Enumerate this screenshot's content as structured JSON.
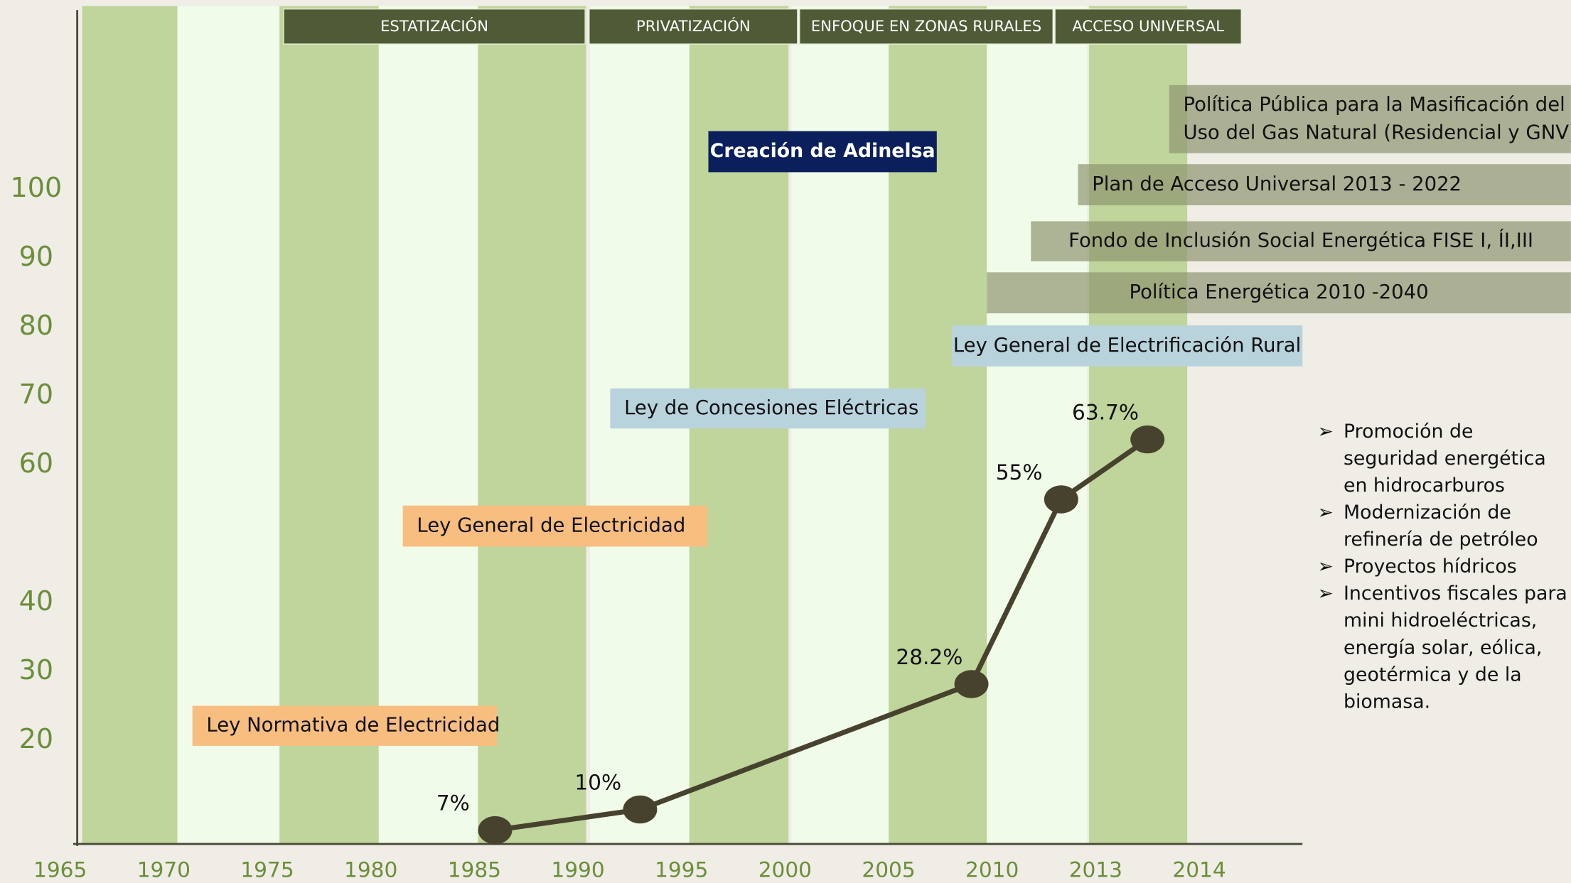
{
  "chart_data": {
    "type": "line",
    "phases": [
      "ESTATIZACIÓN",
      "PRIVATIZACIÓN",
      "ENFOQUE EN ZONAS RURALES",
      "ACCESO UNIVERSAL"
    ],
    "series": [
      {
        "color": "#47422e",
        "x": [
          1986,
          1993,
          2009,
          2012,
          2013.5
        ],
        "values": [
          7,
          10,
          28.2,
          55,
          63.7
        ],
        "value_labels": [
          "7%",
          "10%",
          "28.2%",
          "55%",
          "63.7%"
        ]
      }
    ],
    "xticks": [
      1965,
      1970,
      1975,
      1980,
      1985,
      1990,
      1995,
      2000,
      2005,
      2010,
      2013,
      2014
    ],
    "ylim": [
      5,
      105
    ],
    "yticks": [
      20,
      30,
      40,
      60,
      70,
      80,
      90,
      100
    ],
    "annotations": [
      {
        "lines": [
          "Política Pública para la Masificación del",
          "Uso del Gas Natural (Residencial y GNV)"
        ],
        "color": "#8f9670",
        "text_color": "#111111"
      },
      {
        "lines": [
          "Plan de Acceso Universal 2013 - 2022"
        ],
        "color": "#8f9670",
        "text_color": "#111111"
      },
      {
        "lines": [
          "Fondo de Inclusión Social  Energética FISE I, ÍI,III"
        ],
        "color": "#8f9670",
        "text_color": "#111111"
      },
      {
        "lines": [
          "Política Energética 2010 -2040"
        ],
        "color": "#8f9670",
        "text_color": "#111111"
      },
      {
        "lines": [
          "Ley General de Electrificación Rural"
        ],
        "color": "#b9d3dd",
        "text_color": "#111111"
      },
      {
        "lines": [
          "Ley de Concesiones Eléctricas"
        ],
        "color": "#b9d3dd",
        "text_color": "#111111"
      },
      {
        "lines": [
          "Creación de Adinelsa"
        ],
        "color": "#0a1f5c",
        "text_color": "#ffffff"
      },
      {
        "lines": [
          "Ley General de Electricidad"
        ],
        "color": "#f7be80",
        "text_color": "#111111"
      },
      {
        "lines": [
          "Ley Normativa de Electricidad"
        ],
        "color": "#f7be80",
        "text_color": "#111111"
      }
    ],
    "bullets": [
      "Promoción de seguridad energética en hidrocarburos",
      "Modernización de refinería de petróleo",
      "Proyectos hídricos",
      "Incentivos fiscales para mini hidroeléctricas, energía solar, eólica, geotérmica y de la biomasa."
    ]
  }
}
